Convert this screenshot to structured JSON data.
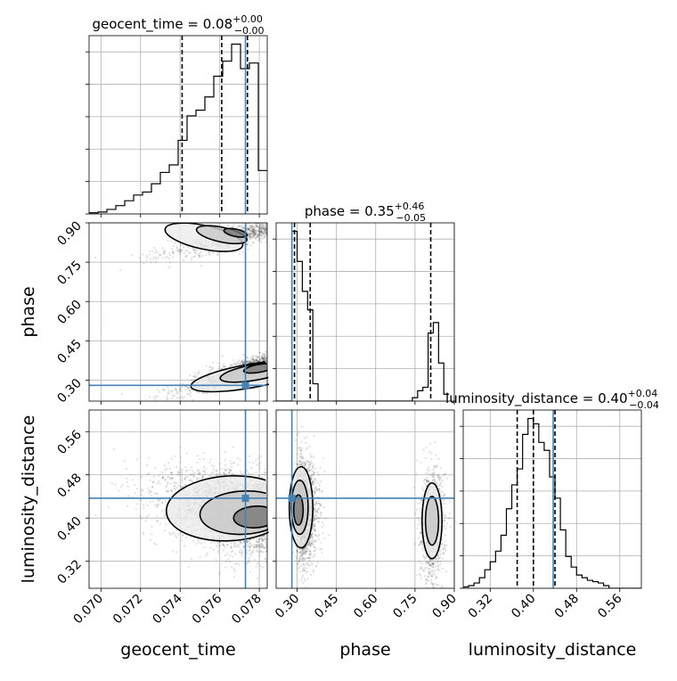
{
  "chart_data": {
    "type": "corner",
    "parameters": [
      "geocent_time",
      "phase",
      "luminosity_distance"
    ],
    "grid": true,
    "colors": {
      "truth": "#4682b4",
      "hist": "#000000",
      "scatter": "#000000"
    },
    "titles": [
      {
        "param": "geocent_time",
        "prefix": "geocent_time = 0.08",
        "sup": "+0.00",
        "sub": "−0.00"
      },
      {
        "param": "phase",
        "prefix": "phase = 0.35",
        "sup": "+0.46",
        "sub": "−0.05"
      },
      {
        "param": "luminosity_distance",
        "prefix": "luminosity_distance = 0.40",
        "sup": "+0.04",
        "sub": "−0.04"
      }
    ],
    "axes": {
      "geocent_time": {
        "range": [
          0.0694,
          0.0784
        ],
        "ticks": [
          0.07,
          0.072,
          0.074,
          0.076,
          0.078
        ],
        "tick_labels": [
          "0.070",
          "0.072",
          "0.074",
          "0.076",
          "0.078"
        ]
      },
      "phase": {
        "range": [
          0.22,
          0.9
        ],
        "ticks": [
          0.3,
          0.45,
          0.6,
          0.75,
          0.9
        ],
        "tick_labels": [
          "0.30",
          "0.45",
          "0.60",
          "0.75",
          "0.90"
        ]
      },
      "luminosity_distance": {
        "range": [
          0.27,
          0.6
        ],
        "ticks": [
          0.32,
          0.4,
          0.48,
          0.56
        ],
        "tick_labels": [
          "0.32",
          "0.40",
          "0.48",
          "0.56"
        ]
      }
    },
    "truths": {
      "geocent_time": 0.0773,
      "phase": 0.28,
      "luminosity_distance": 0.4367
    },
    "quantiles": {
      "geocent_time": [
        0.0741,
        0.0761,
        0.0774
      ],
      "phase": [
        0.29,
        0.35,
        0.81
      ],
      "luminosity_distance": [
        0.37,
        0.4,
        0.44
      ]
    },
    "histograms": {
      "geocent_time": {
        "edges": [
          0.0694,
          0.06985,
          0.0703,
          0.07075,
          0.0712,
          0.07165,
          0.0721,
          0.07255,
          0.073,
          0.07345,
          0.0739,
          0.07435,
          0.0748,
          0.07525,
          0.0757,
          0.07615,
          0.0766,
          0.07705,
          0.0775,
          0.07795,
          0.0784
        ],
        "counts": [
          0.3,
          0.5,
          1.2,
          2.2,
          3.5,
          5.0,
          5.8,
          8.0,
          11.0,
          13.0,
          19.5,
          26.0,
          27.5,
          31.0,
          36.5,
          40.5,
          45.0,
          38.5,
          40.0,
          11.5
        ]
      },
      "phase": {
        "edges": [
          0.22,
          0.24,
          0.26,
          0.28,
          0.3,
          0.32,
          0.34,
          0.36,
          0.38,
          0.4,
          0.42,
          0.44,
          0.46,
          0.48,
          0.5,
          0.52,
          0.54,
          0.56,
          0.58,
          0.6,
          0.62,
          0.64,
          0.66,
          0.68,
          0.7,
          0.72,
          0.74,
          0.76,
          0.78,
          0.8,
          0.82,
          0.84,
          0.86,
          0.88
        ],
        "counts": [
          0,
          0,
          0,
          147,
          121,
          95,
          79,
          15,
          0,
          0,
          0,
          0,
          0,
          0,
          0,
          0,
          0,
          0,
          0,
          0,
          0,
          0,
          0,
          0,
          0,
          0,
          3,
          9,
          12,
          59,
          68,
          33,
          6
        ]
      },
      "luminosity_distance": {
        "edges": [
          0.27,
          0.28,
          0.29,
          0.3,
          0.31,
          0.32,
          0.33,
          0.34,
          0.35,
          0.36,
          0.37,
          0.38,
          0.39,
          0.4,
          0.41,
          0.42,
          0.43,
          0.44,
          0.45,
          0.46,
          0.47,
          0.48,
          0.49,
          0.5,
          0.51,
          0.52,
          0.53,
          0.54,
          0.55,
          0.56,
          0.57,
          0.58,
          0.59,
          0.6
        ],
        "counts": [
          0.5,
          1,
          2,
          4,
          7,
          10,
          14,
          20,
          30,
          39,
          45,
          58,
          64,
          62,
          55,
          52,
          42,
          34,
          22,
          12,
          8,
          5,
          4,
          3,
          2.5,
          2,
          1,
          0,
          0,
          0,
          0,
          0,
          0
        ]
      }
    }
  }
}
